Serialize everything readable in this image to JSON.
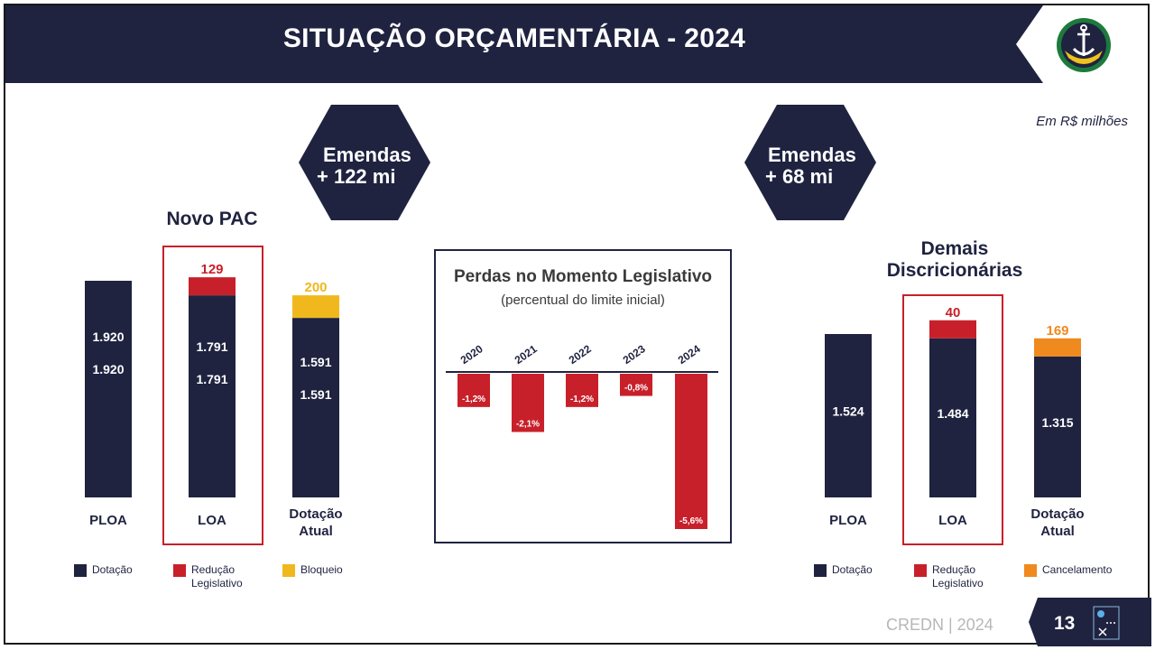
{
  "title": "SITUAÇÃO ORÇAMENTÁRIA - 2024",
  "unit_note": "Em R$ milhões",
  "colors": {
    "navy": "#1f2340",
    "red": "#c8202a",
    "yellow": "#f0b81c",
    "orange": "#ef8a1f"
  },
  "icons": {
    "logo": "anchor-emblem-icon",
    "corner": "compass-flag-icon"
  },
  "left_panel": {
    "hex_line1": "Emendas",
    "hex_line2": "+ 122 mi",
    "section_title": "Novo PAC",
    "legend": [
      {
        "label": "Dotação",
        "color": "#1f2340"
      },
      {
        "label": "Redução Legislativo",
        "color": "#c8202a"
      },
      {
        "label": "Bloqueio",
        "color": "#f0b81c"
      }
    ]
  },
  "right_panel": {
    "hex_line1": "Emendas",
    "hex_line2": "+ 68 mi",
    "section_title_line1": "Demais",
    "section_title_line2": "Discricionárias",
    "legend": [
      {
        "label": "Dotação",
        "color": "#1f2340"
      },
      {
        "label": "Redução Legislativo",
        "color": "#c8202a"
      },
      {
        "label": "Cancelamento",
        "color": "#ef8a1f"
      }
    ]
  },
  "loss_panel": {
    "title": "Perdas no Momento Legislativo",
    "subtitle": "(percentual do limite inicial)"
  },
  "footer": {
    "text": "CREDN | 2024",
    "page_number": "13"
  },
  "chart_data": [
    {
      "type": "bar",
      "title": "Novo PAC",
      "stacked": true,
      "categories": [
        "PLOA",
        "LOA",
        "Dotação Atual"
      ],
      "series": [
        {
          "name": "Dotação",
          "values": [
            1920,
            1791,
            1591
          ],
          "labels": [
            "1.920",
            "1.791",
            "1.591"
          ],
          "color": "#1f2340"
        },
        {
          "name": "Redução Legislativo",
          "values": [
            0,
            129,
            0
          ],
          "labels": [
            "",
            "129",
            ""
          ],
          "color": "#c8202a"
        },
        {
          "name": "Bloqueio",
          "values": [
            0,
            0,
            200
          ],
          "labels": [
            "",
            "",
            "200"
          ],
          "color": "#f0b81c"
        }
      ],
      "duplicate_value_labels": true,
      "highlight_category": "LOA",
      "ylim": [
        0,
        1920
      ],
      "legend": "bottom"
    },
    {
      "type": "bar",
      "title": "Perdas no Momento Legislativo",
      "subtitle": "(percentual do limite inicial)",
      "categories": [
        "2020",
        "2021",
        "2022",
        "2023",
        "2024"
      ],
      "values": [
        -1.2,
        -2.1,
        -1.2,
        -0.8,
        -5.6
      ],
      "labels": [
        "-1,2%",
        "-2,1%",
        "-1,2%",
        "-0,8%",
        "-5,6%"
      ],
      "color": "#c8202a",
      "ylim": [
        -5.6,
        0
      ]
    },
    {
      "type": "bar",
      "title": "Demais Discricionárias",
      "stacked": true,
      "categories": [
        "PLOA",
        "LOA",
        "Dotação Atual"
      ],
      "series": [
        {
          "name": "Dotação",
          "values": [
            1524,
            1484,
            1315
          ],
          "labels": [
            "1.524",
            "1.484",
            "1.315"
          ],
          "color": "#1f2340"
        },
        {
          "name": "Redução Legislativo",
          "values": [
            0,
            40,
            0
          ],
          "labels": [
            "",
            "40",
            ""
          ],
          "color": "#c8202a"
        },
        {
          "name": "Cancelamento",
          "values": [
            0,
            0,
            169
          ],
          "labels": [
            "",
            "",
            "169"
          ],
          "color": "#ef8a1f"
        }
      ],
      "highlight_category": "LOA",
      "ylim": [
        0,
        1524
      ],
      "legend": "bottom"
    }
  ]
}
